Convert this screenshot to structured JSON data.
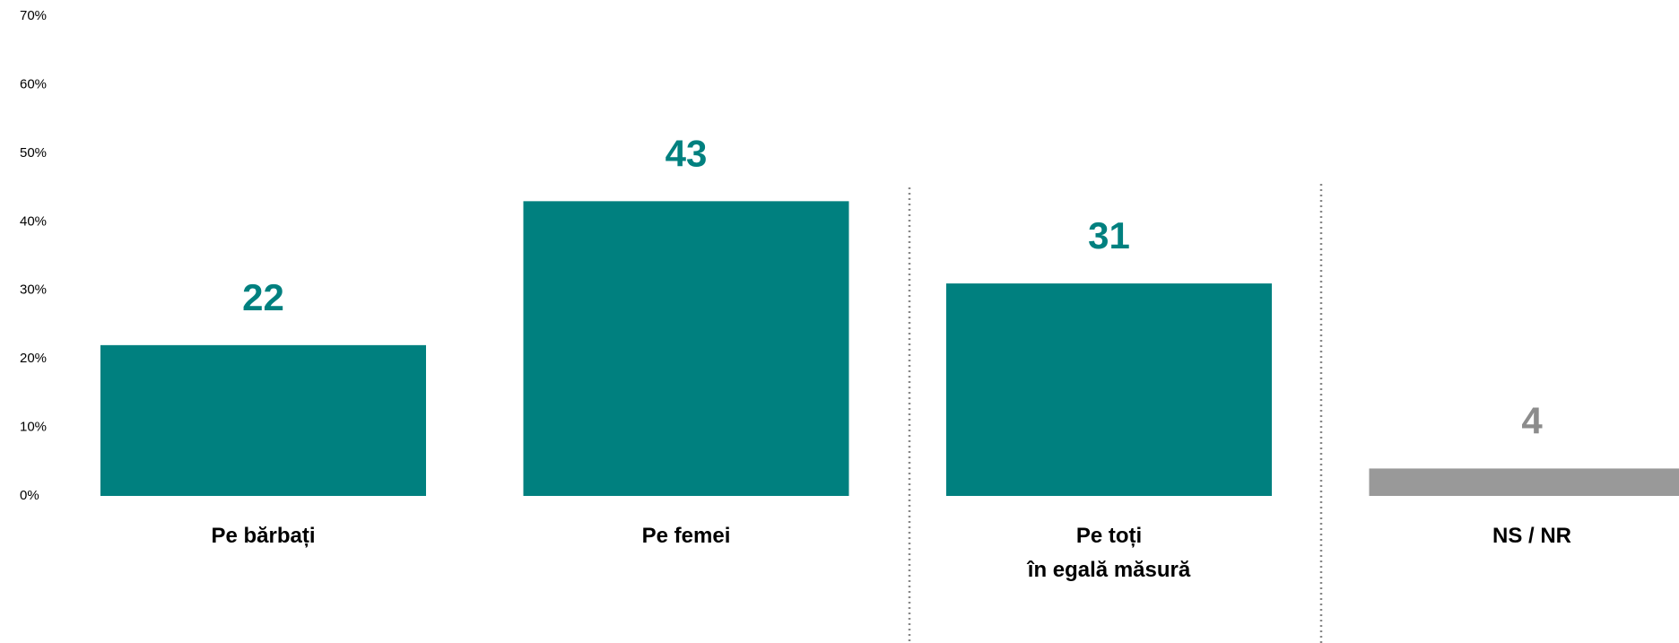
{
  "chart_data": {
    "type": "bar",
    "categories": [
      "Pe bărbați",
      "Pe femei",
      "Pe toți\nîn egală măsură",
      "NS / NR"
    ],
    "values": [
      22,
      43,
      31,
      4
    ],
    "colors": [
      "#00807f",
      "#00807f",
      "#00807f",
      "#999999"
    ],
    "label_colors": [
      "#00807f",
      "#00807f",
      "#00807f",
      "#8c8c8c"
    ],
    "ylim": [
      0,
      70
    ],
    "yticks": [
      {
        "value": 0,
        "label": "0%"
      },
      {
        "value": 10,
        "label": "10%"
      },
      {
        "value": 20,
        "label": "20%"
      },
      {
        "value": 30,
        "label": "30%"
      },
      {
        "value": 40,
        "label": "40%"
      },
      {
        "value": 50,
        "label": "50%"
      },
      {
        "value": 60,
        "label": "60%"
      },
      {
        "value": 70,
        "label": "70%"
      }
    ],
    "grid": false
  }
}
